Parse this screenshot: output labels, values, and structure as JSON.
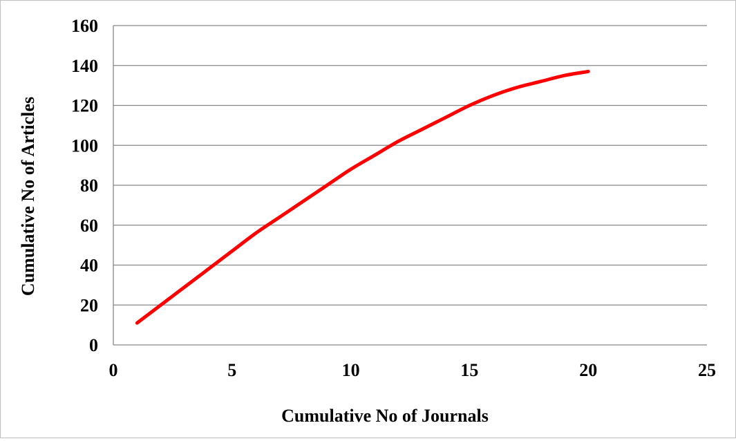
{
  "chart_data": {
    "type": "line",
    "title": "",
    "xlabel": "Cumulative No of Journals",
    "ylabel": "Cumulative No of Articles",
    "xlim": [
      0,
      25
    ],
    "ylim": [
      0,
      160
    ],
    "x_ticks": [
      "0",
      "5",
      "10",
      "15",
      "20",
      "25"
    ],
    "y_ticks": [
      "0",
      "20",
      "40",
      "60",
      "80",
      "100",
      "120",
      "140",
      "160"
    ],
    "grid": "horizontal",
    "legend": "none",
    "series": [
      {
        "color": "#ff0000",
        "x": [
          1,
          2,
          3,
          4,
          5,
          6,
          7,
          8,
          9,
          10,
          11,
          12,
          13,
          14,
          15,
          16,
          17,
          18,
          19,
          20
        ],
        "y": [
          11,
          20,
          29,
          38,
          47,
          56,
          64,
          72,
          80,
          88,
          95,
          102,
          108,
          114,
          120,
          125,
          129,
          132,
          135,
          137
        ]
      }
    ]
  }
}
